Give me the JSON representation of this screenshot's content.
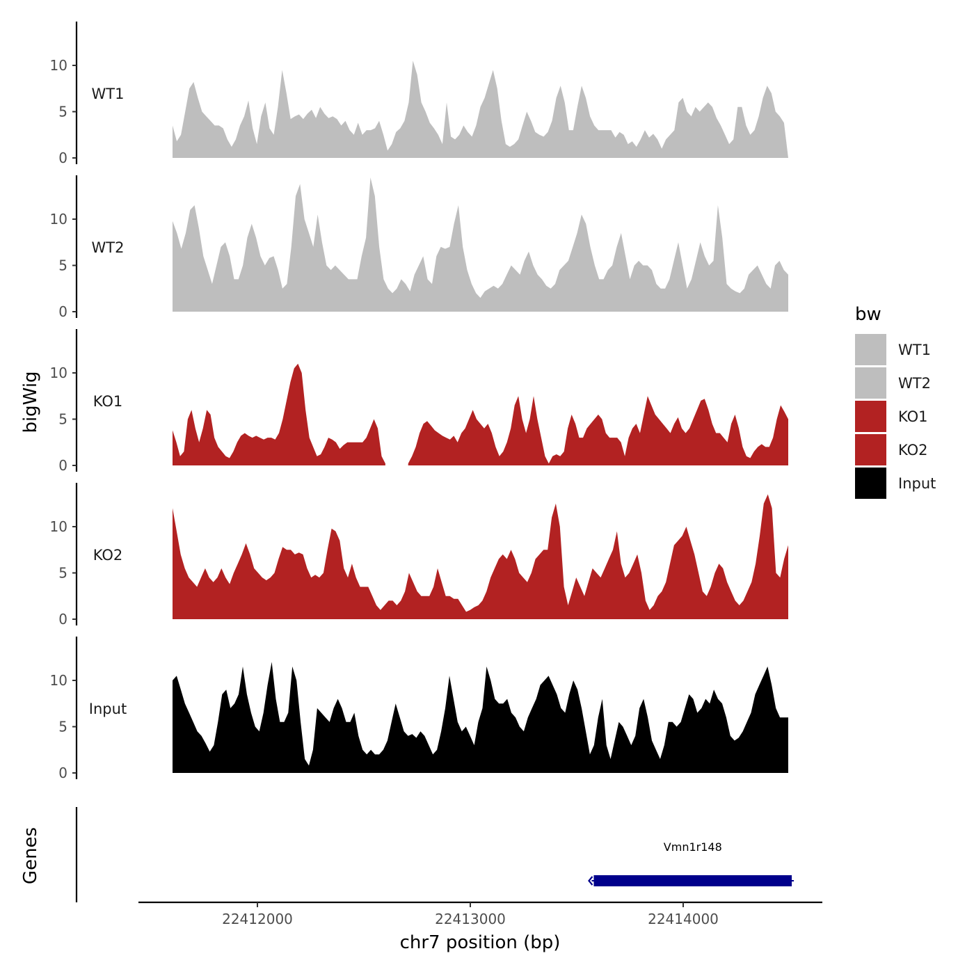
{
  "chart_data": {
    "type": "area",
    "region": {
      "chromosome": "chr7",
      "start": 22411600,
      "end": 22414500
    },
    "xlabel": "chr7 position (bp)",
    "ylabel": "bigWig",
    "genes_label": "Genes",
    "x_ticks": [
      22412000,
      22413000,
      22414000
    ],
    "x_tick_labels": [
      "22412000",
      "22413000",
      "22414000"
    ],
    "y_ticks": [
      0,
      5,
      10
    ],
    "y_tick_labels": [
      "0",
      "5",
      "10"
    ],
    "ylim": [
      0,
      14.5
    ],
    "legend": {
      "title": "bw",
      "position": "right",
      "entries": [
        {
          "label": "WT1",
          "color": "#bebebe"
        },
        {
          "label": "WT2",
          "color": "#bebebe"
        },
        {
          "label": "KO1",
          "color": "#b22222"
        },
        {
          "label": "KO2",
          "color": "#b22222"
        },
        {
          "label": "Input",
          "color": "#000000"
        }
      ]
    },
    "series": [
      {
        "name": "WT1",
        "color": "#bebebe",
        "values": [
          3.5,
          1.8,
          2.5,
          5,
          7.5,
          8.2,
          6.5,
          5,
          4.5,
          4,
          3.5,
          3.5,
          3.2,
          2,
          1.2,
          2,
          3.5,
          4.5,
          6.2,
          3.2,
          1.5,
          4.5,
          6,
          3.2,
          2.5,
          5.5,
          9.5,
          7,
          4.2,
          4.5,
          4.7,
          4.2,
          4.8,
          5.2,
          4.3,
          5.5,
          4.8,
          4.3,
          4.5,
          4.2,
          3.5,
          4,
          3,
          2.5,
          3.8,
          2.5,
          3,
          3,
          3.2,
          4,
          2.5,
          0.8,
          1.5,
          2.8,
          3.2,
          4,
          6,
          10.5,
          9,
          6,
          5,
          3.8,
          3.2,
          2.5,
          1.5,
          6,
          2.3,
          2,
          2.5,
          3.5,
          2.8,
          2.3,
          3.5,
          5.5,
          6.5,
          8,
          9.5,
          7.5,
          4,
          1.5,
          1.2,
          1.5,
          2,
          3.5,
          5,
          4,
          2.8,
          2.5,
          2.3,
          2.8,
          4,
          6.5,
          7.8,
          6,
          3,
          3,
          5.5,
          7.8,
          6.5,
          4.5,
          3.5,
          3,
          3,
          3,
          3,
          2.2,
          2.8,
          2.5,
          1.5,
          1.8,
          1.2,
          2,
          3,
          2.2,
          2.6,
          2,
          1,
          2,
          2.5,
          3,
          6,
          6.5,
          5,
          4.5,
          5.5,
          5,
          5.5,
          6,
          5.5,
          4.3,
          3.5,
          2.5,
          1.5,
          2,
          5.5,
          5.5,
          3.5,
          2.5,
          3,
          4.5,
          6.5,
          7.8,
          7,
          5,
          4.5,
          3.8,
          0
        ]
      },
      {
        "name": "WT2",
        "color": "#bebebe",
        "values": [
          9.8,
          8.5,
          6.8,
          8.5,
          11,
          11.5,
          9,
          6,
          4.5,
          3,
          5,
          7,
          7.5,
          6,
          3.5,
          3.5,
          5,
          8,
          9.5,
          8,
          6,
          5,
          5.8,
          6,
          4.5,
          2.5,
          3,
          7,
          12.5,
          13.8,
          10,
          8.5,
          7,
          10.5,
          7.5,
          5,
          4.5,
          5,
          4.5,
          4,
          3.5,
          3.5,
          3.5,
          6,
          8,
          14.5,
          12.5,
          7,
          3.5,
          2.5,
          2,
          2.5,
          3.5,
          3,
          2.2,
          4,
          5,
          6,
          3.5,
          3,
          6,
          7,
          6.8,
          7,
          9.5,
          11.5,
          7,
          4.5,
          3,
          2,
          1.5,
          2.2,
          2.5,
          2.8,
          2.5,
          3,
          4,
          5,
          4.5,
          4,
          5.5,
          6.5,
          5,
          4,
          3.5,
          2.8,
          2.5,
          3,
          4.5,
          5,
          5.5,
          7,
          8.5,
          10.5,
          9.5,
          7,
          5,
          3.5,
          3.5,
          4.5,
          5,
          7,
          8.5,
          6,
          3.5,
          5,
          5.5,
          5,
          5,
          4.5,
          3,
          2.5,
          2.5,
          3.5,
          5.5,
          7.5,
          5,
          2.5,
          3.5,
          5.5,
          7.5,
          6,
          5,
          5.5,
          11.5,
          8,
          3,
          2.5,
          2.2,
          2,
          2.5,
          4,
          4.5,
          5,
          4,
          3,
          2.5,
          5,
          5.5,
          4.5,
          4
        ]
      },
      {
        "name": "KO1",
        "color": "#b22222",
        "values": [
          3.8,
          2.5,
          1,
          1.5,
          5,
          6,
          4,
          2.5,
          4,
          6,
          5.5,
          3,
          2,
          1.5,
          1,
          0.8,
          1.5,
          2.5,
          3.2,
          3.5,
          3.2,
          3,
          3.2,
          3,
          2.8,
          3,
          3,
          2.8,
          3.5,
          5,
          7,
          9,
          10.5,
          11,
          10,
          6,
          3,
          2,
          1,
          1.2,
          2,
          3,
          2.8,
          2.5,
          1.8,
          2.2,
          2.5,
          2.5,
          2.5,
          2.5,
          2.5,
          3,
          4,
          5,
          4,
          1,
          0.2,
          null,
          null,
          null,
          null,
          null,
          0.2,
          1,
          2,
          3.5,
          4.5,
          4.8,
          4.3,
          3.8,
          3.5,
          3.2,
          3,
          2.8,
          3.2,
          2.5,
          3.5,
          4,
          5,
          6,
          5,
          4.5,
          4,
          4.5,
          3.5,
          2,
          1,
          1.5,
          2.5,
          4,
          6.5,
          7.5,
          5,
          3.5,
          5,
          7.5,
          5,
          3,
          1,
          0.2,
          1,
          1.2,
          1,
          1.5,
          4,
          5.5,
          4.5,
          3,
          3,
          4,
          4.5,
          5,
          5.5,
          5,
          3.5,
          3,
          3,
          3,
          2.5,
          1,
          3,
          4,
          4.5,
          3.5,
          5.5,
          7.5,
          6.5,
          5.5,
          5,
          4.5,
          4,
          3.5,
          4.5,
          5.2,
          4,
          3.5,
          4,
          5,
          6,
          7,
          7.2,
          6,
          4.5,
          3.5,
          3.5,
          3,
          2.5,
          4.5,
          5.5,
          4,
          2,
          1,
          0.8,
          1.5,
          2,
          2.3,
          2,
          2,
          3,
          5,
          6.5,
          5.8,
          5
        ]
      },
      {
        "name": "KO2",
        "color": "#b22222",
        "values": [
          12,
          9.5,
          7,
          5.5,
          4.5,
          4,
          3.5,
          4.5,
          5.5,
          4.5,
          4,
          4.5,
          5.5,
          4.5,
          3.8,
          5,
          6,
          7,
          8.2,
          7,
          5.5,
          5,
          4.5,
          4.2,
          4.5,
          5,
          6.5,
          7.8,
          7.5,
          7.5,
          7,
          7.2,
          7,
          5.5,
          4.5,
          4.8,
          4.5,
          5,
          7.5,
          9.8,
          9.5,
          8.5,
          5.5,
          4.5,
          6,
          4.5,
          3.5,
          3.5,
          3.5,
          2.5,
          1.5,
          1,
          1.5,
          2,
          2,
          1.5,
          2,
          3,
          5,
          4,
          3,
          2.5,
          2.5,
          2.5,
          3.5,
          5.5,
          4,
          2.5,
          2.5,
          2.2,
          2.2,
          1.5,
          0.8,
          1,
          1.3,
          1.5,
          2,
          3,
          4.5,
          5.5,
          6.5,
          7,
          6.5,
          7.5,
          6.5,
          5,
          4.5,
          4,
          5,
          6.5,
          7,
          7.5,
          7.5,
          11,
          12.5,
          10,
          3.5,
          1.5,
          3,
          4.5,
          3.5,
          2.5,
          4,
          5.5,
          5,
          4.5,
          5.5,
          6.5,
          7.5,
          9.5,
          6,
          4.5,
          5,
          6,
          7,
          5,
          2,
          1,
          1.5,
          2.5,
          3,
          4,
          6,
          8,
          8.5,
          9,
          10,
          8.5,
          7,
          5,
          3,
          2.5,
          3.5,
          5,
          6,
          5.5,
          4,
          3,
          2,
          1.5,
          2,
          3,
          4,
          6,
          9,
          12.5,
          13.5,
          12,
          5,
          4.5,
          6.5,
          8
        ]
      },
      {
        "name": "Input",
        "color": "#000000",
        "values": [
          10,
          10.5,
          9,
          7.5,
          6.5,
          5.5,
          4.5,
          4,
          3.2,
          2.3,
          3,
          5.5,
          8.5,
          9,
          7,
          7.5,
          8.5,
          11.5,
          8.5,
          6.5,
          5,
          4.5,
          6.5,
          9.5,
          12,
          8,
          5.5,
          5.5,
          6.5,
          11.5,
          10,
          5.5,
          1.5,
          0.8,
          2.5,
          7,
          6.5,
          6,
          5.5,
          7,
          8,
          7,
          5.5,
          5.5,
          6.5,
          4,
          2.5,
          2,
          2.5,
          2,
          2,
          2.5,
          3.5,
          5.5,
          7.5,
          6,
          4.5,
          4,
          4.2,
          3.8,
          4.5,
          4,
          3,
          2,
          2.5,
          4.5,
          7,
          10.5,
          8,
          5.5,
          4.5,
          5,
          4,
          3,
          5.5,
          7,
          11.5,
          10,
          8,
          7.5,
          7.5,
          8,
          6.5,
          6,
          5,
          4.5,
          6,
          7,
          8,
          9.5,
          10,
          10.5,
          9.5,
          8.5,
          7,
          6.5,
          8.5,
          10,
          9,
          7,
          4.5,
          2,
          3,
          6,
          8,
          3,
          1.5,
          3.5,
          5.5,
          5,
          4,
          3,
          4,
          7,
          8,
          6,
          3.5,
          2.5,
          1.5,
          3,
          5.5,
          5.5,
          5,
          5.5,
          7,
          8.5,
          8,
          6.5,
          7,
          8,
          7.5,
          9,
          8,
          7.5,
          6,
          4,
          3.5,
          3.8,
          4.5,
          5.5,
          6.5,
          8.5,
          9.5,
          10.5,
          11.5,
          9.5,
          7,
          6,
          6,
          6
        ]
      }
    ],
    "genes": [
      {
        "name": "Vmn1r148",
        "start": 22413580,
        "end": 22414510,
        "strand": "-",
        "color": "#00008b"
      }
    ]
  }
}
